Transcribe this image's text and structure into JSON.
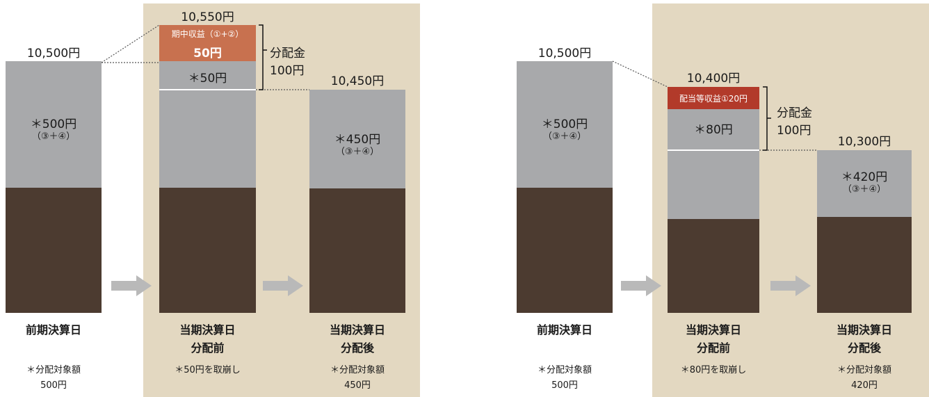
{
  "left": {
    "prev": {
      "total": "10,500円",
      "gray_value": "＊500円",
      "gray_sub": "（③＋④）",
      "caption": "前期決算日",
      "note1": "＊分配対象額",
      "note2": "500円"
    },
    "before": {
      "total": "10,550円",
      "income_label": "期中収益（①+②）",
      "income_value": "50円",
      "gray_value": "＊50円",
      "caption1": "当期決算日",
      "caption2": "分配前",
      "note": "＊50円を取崩し"
    },
    "bracket": {
      "label1": "分配金",
      "label2": "100円"
    },
    "after": {
      "total": "10,450円",
      "gray_value": "＊450円",
      "gray_sub": "（③＋④）",
      "caption1": "当期決算日",
      "caption2": "分配後",
      "note1": "＊分配対象額",
      "note2": "450円"
    }
  },
  "right": {
    "prev": {
      "total": "10,500円",
      "gray_value": "＊500円",
      "gray_sub": "（③＋④）",
      "caption": "前期決算日",
      "note1": "＊分配対象額",
      "note2": "500円"
    },
    "before": {
      "total": "10,400円",
      "income_label": "配当等収益①20円",
      "gray_value": "＊80円",
      "caption1": "当期決算日",
      "caption2": "分配前",
      "note": "＊80円を取崩し"
    },
    "bracket": {
      "label1": "分配金",
      "label2": "100円"
    },
    "after": {
      "total": "10,300円",
      "gray_value": "＊420円",
      "gray_sub": "（③＋④）",
      "caption1": "当期決算日",
      "caption2": "分配後",
      "note1": "＊分配対象額",
      "note2": "420円"
    }
  },
  "colors": {
    "background_panel": "#e3d8c1",
    "base_bar": "#4c3b30",
    "distributable": "#a8a9ab",
    "period_income": "#c8714f",
    "dividend_income": "#b23a2a",
    "arrow": "#b9b9b9"
  }
}
